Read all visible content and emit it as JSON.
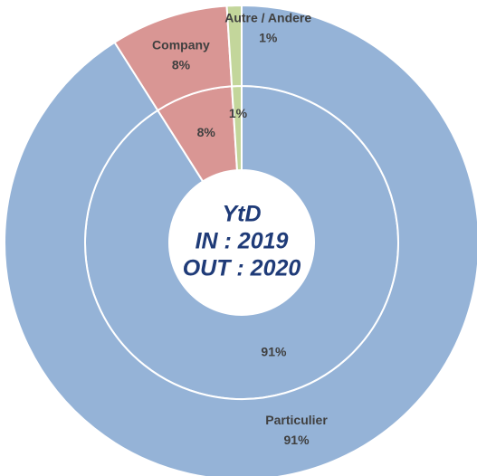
{
  "chart_data": {
    "type": "donut",
    "categories": [
      "Particulier",
      "Company",
      "Autre / Andere"
    ],
    "colors": [
      "#95b3d7",
      "#d99694",
      "#c3d69b"
    ],
    "series": [
      {
        "values": [
          91,
          8,
          1
        ],
        "value_labels": [
          "91%",
          "8%",
          "1%"
        ]
      },
      {
        "values": [
          91,
          8,
          1
        ],
        "value_labels": [
          "91%",
          "8%",
          "1%"
        ]
      }
    ],
    "center_text": [
      "YtD",
      "IN : 2019",
      "OUT : 2020"
    ]
  }
}
